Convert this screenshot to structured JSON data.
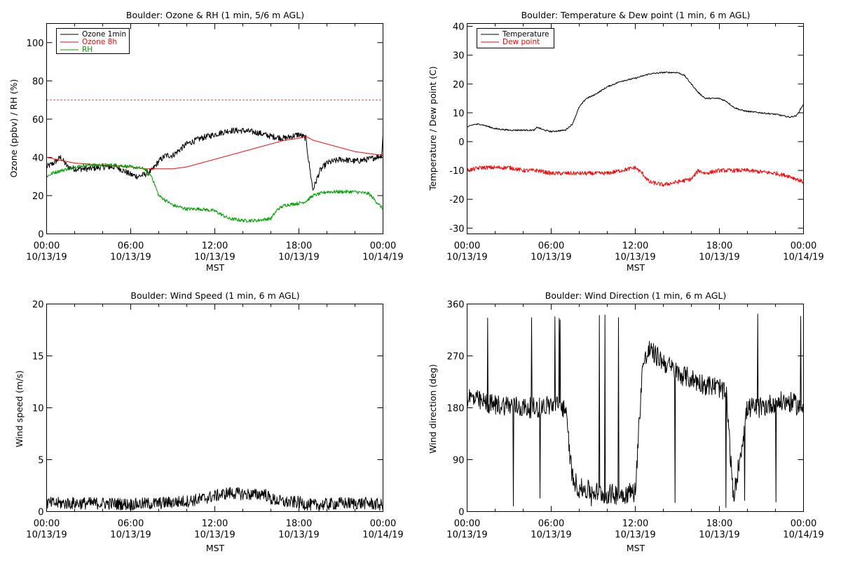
{
  "chart_data": [
    {
      "type": "line",
      "title": "Boulder: Ozone & RH (1 min, 5/6 m AGL)",
      "xlabel": "MST",
      "ylabel": "Ozone (ppbv) / RH (%)",
      "xlim": [
        0,
        24
      ],
      "ylim": [
        0,
        110
      ],
      "yticks": [
        0,
        20,
        40,
        60,
        80,
        100
      ],
      "xtick_labels": [
        [
          "00:00",
          "10/13/19"
        ],
        [
          "06:00",
          "10/13/19"
        ],
        [
          "12:00",
          "10/13/19"
        ],
        [
          "18:00",
          "10/13/19"
        ],
        [
          "00:00",
          "10/14/19"
        ]
      ],
      "legend_position": "top-left",
      "grid": false,
      "reference_line": {
        "y": 70,
        "color": "#ff0000",
        "style": "dotted"
      },
      "series": [
        {
          "name": "Ozone 1min",
          "color": "#000000",
          "noise": 1.6,
          "x": [
            0,
            0.5,
            1,
            1.5,
            2,
            3,
            4,
            5,
            6,
            6.5,
            7,
            7.5,
            8,
            8.5,
            9,
            9.5,
            10,
            11,
            12,
            12.5,
            13,
            14,
            15,
            16,
            17,
            17.5,
            18,
            18.5,
            18.7,
            19,
            19.5,
            20,
            21,
            22,
            23,
            23.9,
            24
          ],
          "y": [
            35,
            37,
            40,
            35,
            34,
            34,
            35,
            35,
            31,
            30,
            31,
            33,
            38,
            41,
            41,
            44,
            47,
            50,
            52,
            53,
            54,
            54,
            53,
            51,
            50,
            51,
            52,
            50,
            38,
            23,
            33,
            37,
            39,
            38,
            39,
            41,
            52
          ]
        },
        {
          "name": "Ozone 8h",
          "color": "#ff0000",
          "noise": 0,
          "x": [
            0,
            2,
            4,
            6,
            7,
            8,
            9,
            10,
            11,
            12,
            13,
            14,
            15,
            16,
            17,
            18,
            18.5,
            19,
            20,
            21,
            22,
            23,
            24
          ],
          "y": [
            40,
            37,
            36,
            35,
            34,
            34,
            34,
            35,
            37,
            39,
            41,
            43,
            45,
            47,
            49,
            50,
            51,
            49,
            47,
            45,
            43,
            42,
            41
          ]
        },
        {
          "name": "RH",
          "color": "#00a000",
          "noise": 0.9,
          "x": [
            0,
            0.5,
            1,
            2,
            3,
            4,
            5,
            6,
            7,
            7.5,
            8,
            9,
            10,
            11,
            12,
            13,
            14,
            15,
            16,
            16.5,
            17,
            18,
            18.5,
            19,
            20,
            21,
            22,
            23,
            24
          ],
          "y": [
            30,
            32,
            33,
            35,
            36,
            36,
            36,
            35,
            34,
            30,
            20,
            15,
            13,
            13,
            12,
            8,
            7,
            7,
            8,
            13,
            15,
            16,
            17,
            20,
            22,
            22,
            22,
            21,
            13
          ]
        }
      ]
    },
    {
      "type": "line",
      "title": "Boulder: Temperature & Dew point (1 min, 6 m AGL)",
      "xlabel": "MST",
      "ylabel": "Temperature / Dew point (C)",
      "xlim": [
        0,
        24
      ],
      "ylim": [
        -32,
        41
      ],
      "yticks": [
        -30,
        -20,
        -10,
        0,
        10,
        20,
        30,
        40
      ],
      "xtick_labels": [
        [
          "00:00",
          "10/13/19"
        ],
        [
          "06:00",
          "10/13/19"
        ],
        [
          "12:00",
          "10/13/19"
        ],
        [
          "18:00",
          "10/13/19"
        ],
        [
          "00:00",
          "10/14/19"
        ]
      ],
      "legend_position": "top-left",
      "grid": false,
      "series": [
        {
          "name": "Temperature",
          "color": "#000000",
          "noise": 0.25,
          "x": [
            0,
            0.5,
            1,
            2,
            3,
            4,
            4.8,
            5,
            5.5,
            6,
            7,
            7.5,
            8,
            8.5,
            9,
            10,
            11,
            12,
            13,
            14,
            15,
            15.5,
            16,
            16.5,
            17,
            18,
            18.5,
            19,
            19.5,
            20,
            21,
            22,
            23,
            23.5,
            24
          ],
          "y": [
            5,
            6,
            6,
            4.5,
            4,
            4,
            4,
            5,
            4,
            3.5,
            4,
            6,
            12,
            15,
            16,
            19,
            21,
            22,
            23.5,
            24,
            24,
            23,
            20,
            17,
            15,
            15,
            14,
            12,
            11,
            10.5,
            10,
            9.5,
            8.5,
            9,
            13
          ]
        },
        {
          "name": "Dew point",
          "color": "#ff0000",
          "noise": 0.7,
          "x": [
            0,
            1,
            2,
            3,
            4,
            5,
            6,
            7,
            8,
            9,
            10,
            11,
            12,
            12.5,
            13,
            14,
            15,
            16,
            16.5,
            17,
            18,
            19,
            20,
            21,
            22,
            23,
            23.5,
            24
          ],
          "y": [
            -10,
            -9,
            -9,
            -9,
            -10,
            -10,
            -11,
            -11,
            -11,
            -11,
            -11,
            -10,
            -9,
            -11,
            -14,
            -15,
            -14,
            -13,
            -10,
            -11,
            -10,
            -10,
            -10,
            -10.5,
            -11,
            -12,
            -13,
            -14
          ]
        }
      ]
    },
    {
      "type": "line",
      "title": "Boulder: Wind Speed (1 min, 6 m AGL)",
      "xlabel": "MST",
      "ylabel": "Wind speed (m/s)",
      "xlim": [
        0,
        24
      ],
      "ylim": [
        0,
        20
      ],
      "yticks": [
        0,
        5,
        10,
        15,
        20
      ],
      "xtick_labels": [
        [
          "00:00",
          "10/13/19"
        ],
        [
          "06:00",
          "10/13/19"
        ],
        [
          "12:00",
          "10/13/19"
        ],
        [
          "18:00",
          "10/13/19"
        ],
        [
          "00:00",
          "10/14/19"
        ]
      ],
      "grid": false,
      "series": [
        {
          "name": "",
          "color": "#000000",
          "noise": 0.6,
          "x": [
            0,
            2,
            4,
            6,
            8,
            10,
            11,
            12,
            13,
            14,
            15,
            15.5,
            16,
            17,
            18,
            18.5,
            19,
            20,
            21,
            22,
            23,
            24
          ],
          "y": [
            0.8,
            0.8,
            0.8,
            0.7,
            0.8,
            1,
            1.2,
            1.5,
            1.8,
            1.7,
            1.6,
            1.8,
            1.2,
            0.9,
            0.9,
            0.7,
            0.6,
            0.7,
            0.8,
            0.8,
            0.8,
            0.6
          ]
        }
      ]
    },
    {
      "type": "line",
      "title": "Boulder: Wind Direction (1 min, 6 m AGL)",
      "xlabel": "MST",
      "ylabel": "Wind direction (deg)",
      "xlim": [
        0,
        24
      ],
      "ylim": [
        0,
        360
      ],
      "yticks": [
        0,
        90,
        180,
        270,
        360
      ],
      "xtick_labels": [
        [
          "00:00",
          "10/13/19"
        ],
        [
          "06:00",
          "10/13/19"
        ],
        [
          "12:00",
          "10/13/19"
        ],
        [
          "18:00",
          "10/13/19"
        ],
        [
          "00:00",
          "10/14/19"
        ]
      ],
      "grid": false,
      "series": [
        {
          "name": "",
          "color": "#000000",
          "noise": 18,
          "x": [
            0,
            1,
            2,
            3,
            4,
            5,
            6,
            7,
            7.5,
            8,
            9,
            10,
            11,
            12,
            12.5,
            13,
            14,
            15,
            16,
            17,
            18,
            18.5,
            19,
            20,
            21,
            22,
            23,
            24
          ],
          "y": [
            200,
            190,
            185,
            185,
            180,
            180,
            185,
            180,
            60,
            40,
            35,
            30,
            30,
            35,
            250,
            280,
            260,
            240,
            230,
            220,
            215,
            200,
            20,
            180,
            180,
            190,
            190,
            180
          ]
        }
      ]
    }
  ]
}
